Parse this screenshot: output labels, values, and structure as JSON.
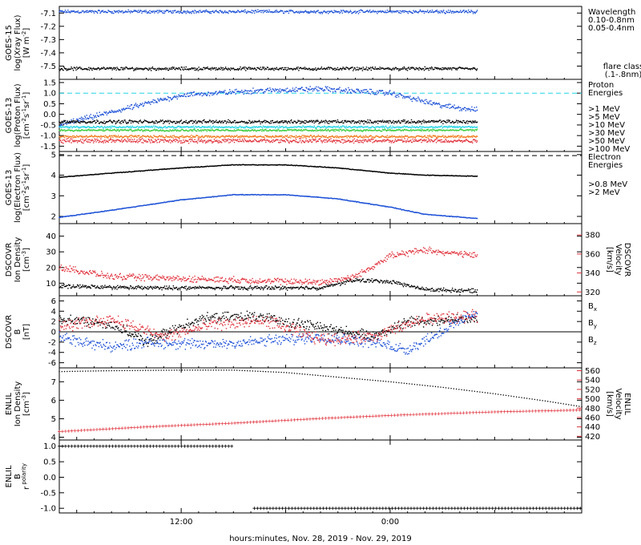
{
  "xaxis": {
    "label": "hours:minutes, Nov. 28, 2019 - Nov. 29, 2019",
    "ticks": [
      {
        "value": 12,
        "label": "12:00"
      },
      {
        "value": 24,
        "label": "0:00"
      }
    ],
    "range": [
      5,
      35
    ]
  },
  "colors": {
    "black": "#000000",
    "blue": "#1a4fd6",
    "cyan": "#22d3e6",
    "green": "#3ccc3c",
    "yellow": "#e6c400",
    "orange": "#f07a1a",
    "red": "#e0303a",
    "grid": "#000000"
  },
  "chart_data": [
    {
      "type": "scatter",
      "id": "goes-xray",
      "ylabel": [
        "GOES-15",
        "log(Xray Flux)",
        "[W m",
        "-2",
        "]"
      ],
      "ylim": [
        -7.6,
        -7.05
      ],
      "yticks": [
        "-7.1",
        "-7.2",
        "-7.3",
        "-7.4",
        "-7.5"
      ],
      "legend_title": "Wavelength",
      "legend": [
        {
          "label": "0.10-0.8nm",
          "color": "blue"
        },
        {
          "label": "0.05-0.4nm",
          "color": "black"
        }
      ],
      "note": [
        "flare class",
        "(.1-.8nm)"
      ],
      "series": [
        {
          "name": "0.10-0.8nm",
          "color": "blue",
          "x": [
            5.0,
            29.0
          ],
          "y": [
            -7.09,
            -7.09
          ],
          "spread": 0.015
        },
        {
          "name": "0.05-0.4nm",
          "color": "black",
          "x": [
            5.0,
            29.0
          ],
          "y": [
            -7.52,
            -7.52
          ],
          "spread": 0.015
        }
      ]
    },
    {
      "type": "scatter",
      "id": "goes-proton",
      "ylabel": [
        "GOES-13",
        "log(Proton Flux)",
        "[cm",
        "-2",
        "s",
        "-1",
        "sr",
        "-1",
        "]"
      ],
      "ylim": [
        -1.75,
        1.65
      ],
      "yticks": [
        "1.5",
        "1.0",
        "0.5",
        "0.0",
        "-0.5",
        "-1.0",
        "-1.5"
      ],
      "reference_line": {
        "y": 1.0,
        "color": "cyan"
      },
      "legend_title": "Proton Energies",
      "legend": [
        {
          "label": ">1 MeV",
          "color": "blue"
        },
        {
          "label": ">5 MeV",
          "color": "black"
        },
        {
          "label": ">10 MeV",
          "color": "cyan"
        },
        {
          "label": ">30 MeV",
          "color": "green"
        },
        {
          "label": ">50 MeV",
          "color": "orange"
        },
        {
          "label": ">100 MeV",
          "color": "red"
        }
      ],
      "series": [
        {
          "name": ">1 MeV",
          "color": "blue",
          "x": [
            5.0,
            8.0,
            12.0,
            16.0,
            20.0,
            24.0,
            27.0,
            29.0
          ],
          "y": [
            -0.5,
            0.1,
            0.9,
            1.1,
            1.2,
            1.0,
            0.4,
            0.2
          ],
          "spread": 0.15
        },
        {
          "name": ">5 MeV",
          "color": "black",
          "x": [
            5.0,
            29.0
          ],
          "y": [
            -0.35,
            -0.35
          ],
          "spread": 0.1
        },
        {
          "name": ">10 MeV",
          "color": "cyan",
          "x": [
            5.0,
            29.0
          ],
          "y": [
            -0.6,
            -0.6
          ],
          "spread": 0.06
        },
        {
          "name": ">30 MeV",
          "color": "green",
          "x": [
            5.0,
            29.0
          ],
          "y": [
            -0.75,
            -0.75
          ],
          "spread": 0.06
        },
        {
          "name": ">50 MeV",
          "color": "orange",
          "x": [
            5.0,
            29.0
          ],
          "y": [
            -1.05,
            -1.05
          ],
          "spread": 0.07
        },
        {
          "name": ">100 MeV",
          "color": "red",
          "x": [
            5.0,
            29.0
          ],
          "y": [
            -1.25,
            -1.25
          ],
          "spread": 0.12
        }
      ]
    },
    {
      "type": "scatter",
      "id": "goes-electron",
      "ylabel": [
        "GOES-13",
        "log(Electron Flux)",
        "[cm",
        "-2",
        "s",
        "-1",
        "sr",
        "-1",
        "]"
      ],
      "ylim": [
        1.65,
        5.15
      ],
      "yticks": [
        "5",
        "4",
        "3",
        "2"
      ],
      "reference_line": {
        "y": 4.95,
        "color": "black",
        "dashed": true
      },
      "legend_title": "Electron Energies",
      "legend": [
        {
          "label": ">0.8 MeV",
          "color": "black"
        },
        {
          "label": ">2 MeV",
          "color": "blue"
        }
      ],
      "series": [
        {
          "name": ">0.8 MeV",
          "color": "black",
          "x": [
            5.0,
            8.0,
            12.0,
            15.0,
            18.0,
            21.0,
            24.0,
            26.0,
            29.0
          ],
          "y": [
            3.9,
            4.1,
            4.35,
            4.5,
            4.5,
            4.35,
            4.1,
            4.0,
            3.95
          ],
          "spread": 0.02
        },
        {
          "name": ">2 MeV",
          "color": "blue",
          "x": [
            5.0,
            8.0,
            12.0,
            15.0,
            18.0,
            21.0,
            24.0,
            26.0,
            29.0
          ],
          "y": [
            1.95,
            2.3,
            2.8,
            3.05,
            3.05,
            2.85,
            2.45,
            2.1,
            1.9
          ],
          "spread": 0.02
        }
      ]
    },
    {
      "type": "scatter",
      "id": "dscovr-plasma",
      "ylabel": [
        "DSCOVR",
        "Ion Density",
        "[cm",
        "-3",
        "]"
      ],
      "ylim": [
        2,
        48
      ],
      "yticks": [
        "40",
        "30",
        "20",
        "10"
      ],
      "ylabel_right": [
        "DSCOVR",
        "Velocity",
        "[km/s]"
      ],
      "ylim_right": [
        316,
        392
      ],
      "yticks_right": [
        "380",
        "360",
        "340",
        "320"
      ],
      "series": [
        {
          "name": "Ion Density",
          "color": "black",
          "axis": "left",
          "x": [
            5.0,
            10.0,
            15.0,
            20.0,
            22.0,
            24.0,
            26.0,
            29.0
          ],
          "y": [
            8.0,
            7.0,
            7.0,
            7.0,
            12.0,
            11.0,
            6.0,
            5.0
          ],
          "spread": 1.5
        },
        {
          "name": "Velocity",
          "color": "red",
          "axis": "right",
          "x": [
            5.0,
            8.0,
            12.0,
            16.0,
            20.0,
            22.0,
            24.0,
            26.0,
            29.0
          ],
          "y": [
            346.0,
            336.0,
            334.0,
            332.0,
            330.0,
            336.0,
            358.0,
            364.0,
            358.0
          ],
          "spread": 4.0
        }
      ]
    },
    {
      "type": "scatter",
      "id": "dscovr-mag",
      "ylabel": [
        "DSCOVR",
        "B",
        "[nT]"
      ],
      "ylim": [
        -7,
        7
      ],
      "yticks": [
        "6",
        "4",
        "2",
        "0",
        "-2",
        "-4",
        "-6"
      ],
      "zero_line": true,
      "legend": [
        {
          "label": "Bx",
          "color": "black"
        },
        {
          "label": "By",
          "color": "blue"
        },
        {
          "label": "Bz",
          "color": "red"
        }
      ],
      "series": [
        {
          "name": "Bx",
          "color": "black",
          "x": [
            5.0,
            8.0,
            10.0,
            13.0,
            16.0,
            20.0,
            23.0,
            25.0,
            29.0
          ],
          "y": [
            2.5,
            1.5,
            -2.0,
            2.5,
            3.0,
            1.0,
            -1.0,
            2.0,
            2.5
          ],
          "spread": 1.2
        },
        {
          "name": "By",
          "color": "blue",
          "x": [
            5.0,
            8.0,
            10.0,
            13.0,
            16.0,
            20.0,
            23.0,
            25.0,
            28.0,
            29.0
          ],
          "y": [
            -1.0,
            -3.0,
            -2.0,
            -2.5,
            -2.0,
            -1.0,
            -2.0,
            -3.5,
            2.0,
            4.0
          ],
          "spread": 1.3
        },
        {
          "name": "Bz",
          "color": "red",
          "x": [
            5.0,
            8.0,
            11.0,
            14.0,
            17.0,
            20.0,
            23.0,
            26.0,
            29.0
          ],
          "y": [
            1.0,
            2.5,
            -1.0,
            1.5,
            2.0,
            -1.5,
            -1.0,
            2.5,
            3.0
          ],
          "spread": 1.4
        }
      ]
    },
    {
      "type": "line",
      "id": "enlil-plasma",
      "ylabel": [
        "ENLIL",
        "Ion Density",
        "[cm",
        "-3",
        "]"
      ],
      "ylim": [
        3.85,
        7.75
      ],
      "yticks": [
        "7",
        "6",
        "5",
        "4"
      ],
      "ylabel_right": [
        "ENLIL",
        "Velocity",
        "[km/s]"
      ],
      "ylim_right": [
        412,
        566
      ],
      "yticks_right": [
        "560",
        "540",
        "520",
        "500",
        "480",
        "460",
        "440",
        "420"
      ],
      "series": [
        {
          "name": "Ion Density",
          "color": "black",
          "axis": "left",
          "marker": "dot",
          "x": [
            5.0,
            8.0,
            12.0,
            15.0,
            18.0,
            21.0,
            24.0,
            27.0,
            30.0,
            33.0,
            35.0
          ],
          "y": [
            7.55,
            7.6,
            7.63,
            7.63,
            7.5,
            7.25,
            7.0,
            6.7,
            6.35,
            5.95,
            5.65
          ],
          "spread": 0.0
        },
        {
          "name": "Velocity",
          "color": "red",
          "axis": "right",
          "marker": "plus",
          "x": [
            5.0,
            10.0,
            15.0,
            20.0,
            25.0,
            30.0,
            35.0
          ],
          "y": [
            430.0,
            440.0,
            448.0,
            458.0,
            466.0,
            472.0,
            476.0
          ],
          "spread": 0.0
        }
      ]
    },
    {
      "type": "line",
      "id": "enlil-polarity",
      "ylabel": [
        "ENLIL",
        "B",
        "r",
        " polarity"
      ],
      "ylim": [
        -1.15,
        1.2
      ],
      "yticks": [
        "1.0",
        "0.5",
        "0.0",
        "-0.5",
        "-1.0"
      ],
      "series": [
        {
          "name": "polarity",
          "color": "black",
          "marker": "plus",
          "segments": [
            {
              "x": [
                5.0,
                15.0
              ],
              "y": 1.0
            },
            {
              "x": [
                16.2,
                35.0
              ],
              "y": -1.0
            }
          ]
        }
      ]
    }
  ]
}
